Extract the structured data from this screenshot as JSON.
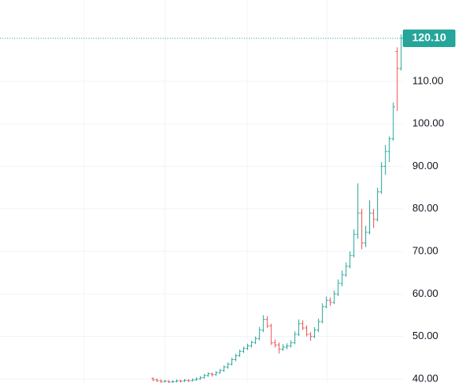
{
  "chart_data": {
    "type": "ohlc",
    "open": [
      40.1,
      39.8,
      39.6,
      39.4,
      39.5,
      39.3,
      39.4,
      39.6,
      39.5,
      39.7,
      39.6,
      39.8,
      40.0,
      40.3,
      40.8,
      41.2,
      41.0,
      41.5,
      42.0,
      42.8,
      43.5,
      44.6,
      45.5,
      46.5,
      47.2,
      47.8,
      48.6,
      49.5,
      51.5,
      54.0,
      52.5,
      48.5,
      48.0,
      47.0,
      47.5,
      47.8,
      48.5,
      50.5,
      53.0,
      52.0,
      50.5,
      50.0,
      51.5,
      53.5,
      57.0,
      58.5,
      58.0,
      60.0,
      62.5,
      64.5,
      66.5,
      69.0,
      74.0,
      79.0,
      72.0,
      74.5,
      79.0,
      77.5,
      84.0,
      90.0,
      93.5,
      96.5,
      117.0,
      113.0
    ],
    "high": [
      40.4,
      40.1,
      39.9,
      39.8,
      39.7,
      39.7,
      39.9,
      39.8,
      40.0,
      39.9,
      40.1,
      40.4,
      40.7,
      41.2,
      41.6,
      41.5,
      41.9,
      42.4,
      43.2,
      43.9,
      45.0,
      45.9,
      46.9,
      47.6,
      48.3,
      49.0,
      50.0,
      52.2,
      55.0,
      54.8,
      53.0,
      49.3,
      48.6,
      48.2,
      48.4,
      49.1,
      51.2,
      54.0,
      53.8,
      52.6,
      51.0,
      52.2,
      54.2,
      57.8,
      59.4,
      59.2,
      60.8,
      63.4,
      65.5,
      67.4,
      70.0,
      75.2,
      86.0,
      80.0,
      76.0,
      82.0,
      80.0,
      85.0,
      91.0,
      95.0,
      97.0,
      105.0,
      118.0,
      121.0
    ],
    "low": [
      39.5,
      39.3,
      39.1,
      39.2,
      39.0,
      39.1,
      39.2,
      39.2,
      39.3,
      39.3,
      39.4,
      39.6,
      39.8,
      40.1,
      40.5,
      40.6,
      40.8,
      41.2,
      41.7,
      42.4,
      43.2,
      44.2,
      45.2,
      46.1,
      46.8,
      47.4,
      48.2,
      49.1,
      51.0,
      52.0,
      48.0,
      47.4,
      46.0,
      46.6,
      47.0,
      47.4,
      48.2,
      50.1,
      51.5,
      50.0,
      49.0,
      49.6,
      51.0,
      53.1,
      56.6,
      57.2,
      57.6,
      59.5,
      61.8,
      64.0,
      66.0,
      68.6,
      73.0,
      70.5,
      71.0,
      74.0,
      75.5,
      77.0,
      83.5,
      88.0,
      91.0,
      96.0,
      103.0,
      112.5
    ],
    "close": [
      39.8,
      39.6,
      39.4,
      39.5,
      39.3,
      39.4,
      39.6,
      39.5,
      39.7,
      39.6,
      39.8,
      40.0,
      40.3,
      40.8,
      41.2,
      41.0,
      41.5,
      42.0,
      42.8,
      43.5,
      44.6,
      45.5,
      46.5,
      47.2,
      47.8,
      48.6,
      49.5,
      51.5,
      54.0,
      52.5,
      48.5,
      48.0,
      47.0,
      47.5,
      47.8,
      48.5,
      50.5,
      53.0,
      52.0,
      50.5,
      50.0,
      51.5,
      53.5,
      57.0,
      58.5,
      58.0,
      60.0,
      62.5,
      64.5,
      66.5,
      69.0,
      74.0,
      79.0,
      72.0,
      74.5,
      79.0,
      77.5,
      84.0,
      90.0,
      93.5,
      96.5,
      104.0,
      113.0,
      120.1
    ],
    "up_color": "#26a69a",
    "down_color": "#ef5350",
    "last_price": {
      "value": 120.1,
      "label": "120.10"
    },
    "ylim": [
      39.06,
      129.1
    ],
    "yticks": [
      {
        "value": 40,
        "label": "40.00"
      },
      {
        "value": 50,
        "label": "50.00"
      },
      {
        "value": 60,
        "label": "60.00"
      },
      {
        "value": 70,
        "label": "70.00"
      },
      {
        "value": 80,
        "label": "80.00"
      },
      {
        "value": 90,
        "label": "90.00"
      },
      {
        "value": 100,
        "label": "100.00"
      },
      {
        "value": 110,
        "label": "110.00"
      }
    ],
    "grid": true
  }
}
